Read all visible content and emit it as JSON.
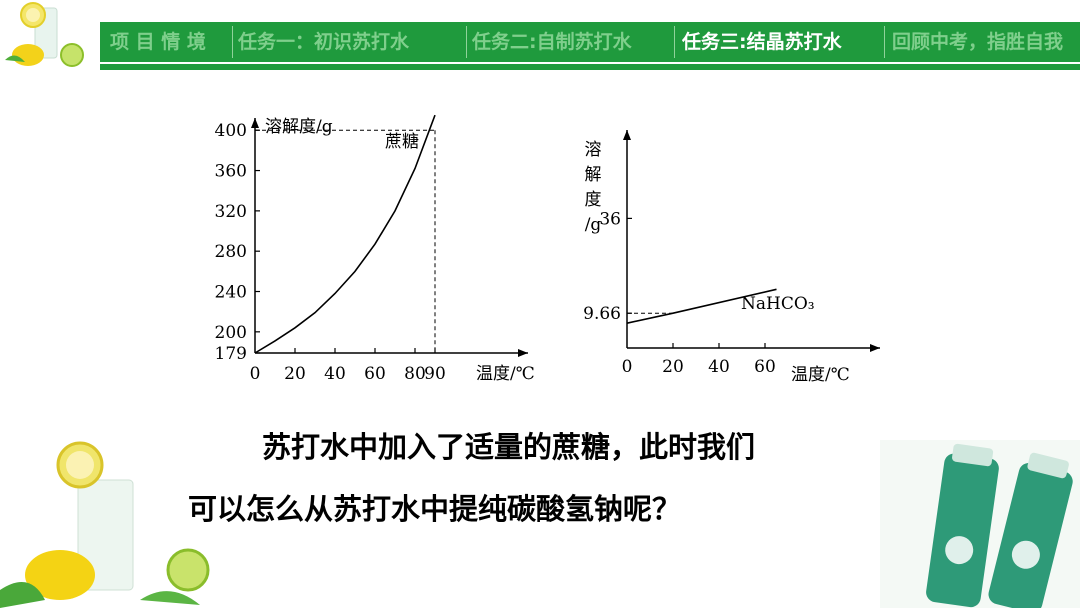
{
  "nav": {
    "tabs": [
      {
        "label": "项 目 情 境",
        "state": "dim"
      },
      {
        "label": "任务一：初识苏打水",
        "state": "dim"
      },
      {
        "label": "任务二:自制苏打水",
        "state": "dim"
      },
      {
        "label": "任务三:结晶苏打水",
        "state": "active"
      },
      {
        "label": "回顾中考，指胜自我",
        "state": "dim"
      }
    ],
    "accent_color": "#1f9a3d"
  },
  "chart_data": [
    {
      "type": "line",
      "series": [
        {
          "name": "蔗糖",
          "x": [
            0,
            10,
            20,
            30,
            40,
            50,
            60,
            70,
            80,
            90
          ],
          "y": [
            179,
            191,
            204,
            219,
            238,
            260,
            287,
            320,
            362,
            415
          ]
        }
      ],
      "xlabel": "温度/℃",
      "ylabel": "溶解度/g",
      "xticks": [
        "0",
        "20",
        "40",
        "60",
        "80",
        "90"
      ],
      "yticks": [
        "179",
        "200",
        "240",
        "280",
        "320",
        "360",
        "400"
      ],
      "xlim": [
        0,
        110
      ],
      "ylim": [
        179,
        440
      ],
      "annotations": [
        "400 at 90"
      ]
    },
    {
      "type": "line",
      "series": [
        {
          "name": "NaHCO₃",
          "x": [
            0,
            20,
            65
          ],
          "y": [
            6.9,
            9.66,
            16.3
          ]
        }
      ],
      "xlabel": "温度/℃",
      "ylabel": "溶解度/g",
      "ylabel_lines": [
        "溶",
        "解",
        "度",
        "/g"
      ],
      "xticks": [
        "0",
        "20",
        "40",
        "60"
      ],
      "yticks": [
        "9.66",
        "36"
      ],
      "xlim": [
        0,
        110
      ],
      "ylim": [
        0,
        80
      ]
    }
  ],
  "question": {
    "line1": "苏打水中加入了适量的蔗糖，此时我们",
    "line2": "可以怎么从苏打水中提纯碳酸氢钠呢？"
  }
}
